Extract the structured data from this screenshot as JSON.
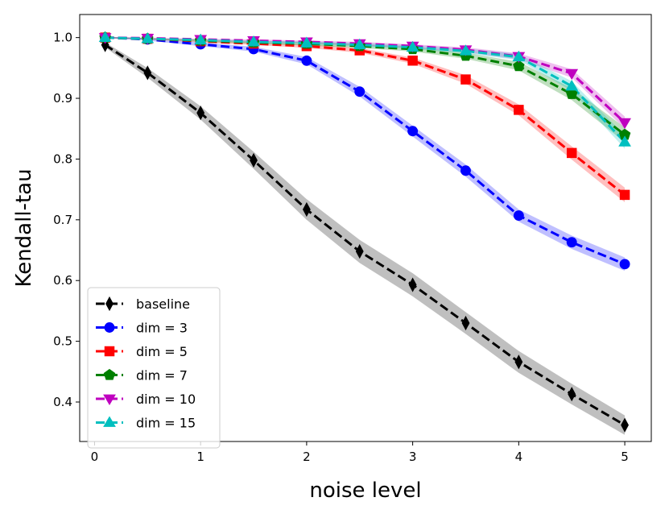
{
  "chart_data": {
    "type": "line",
    "xlabel": "noise level",
    "ylabel": "Kendall-tau",
    "xlim": [
      -0.14,
      5.25
    ],
    "ylim": [
      0.335,
      1.038
    ],
    "xticks": [
      0,
      1,
      2,
      3,
      4,
      5
    ],
    "xtick_labels": [
      "0",
      "1",
      "2",
      "3",
      "4",
      "5"
    ],
    "yticks": [
      0.4,
      0.5,
      0.6,
      0.7,
      0.8,
      0.9,
      1.0
    ],
    "ytick_labels": [
      "0.4",
      "0.5",
      "0.6",
      "0.7",
      "0.8",
      "0.9",
      "1.0"
    ],
    "legend_position": "lower-left",
    "x": [
      0.1,
      0.5,
      1.0,
      1.5,
      2.0,
      2.5,
      3.0,
      3.5,
      4.0,
      4.5,
      5.0
    ],
    "series": [
      {
        "name": "baseline",
        "color": "#000000",
        "marker": "thin-diamond",
        "values": [
          0.988,
          0.942,
          0.876,
          0.798,
          0.717,
          0.648,
          0.593,
          0.53,
          0.466,
          0.413,
          0.362
        ],
        "band": [
          0.004,
          0.008,
          0.011,
          0.014,
          0.017,
          0.019,
          0.019,
          0.018,
          0.018,
          0.017,
          0.016
        ]
      },
      {
        "name": "dim = 3",
        "color": "#0000ff",
        "marker": "circle",
        "values": [
          1.0,
          0.997,
          0.989,
          0.981,
          0.962,
          0.911,
          0.846,
          0.781,
          0.707,
          0.663,
          0.627
        ],
        "band": [
          0.001,
          0.002,
          0.003,
          0.004,
          0.006,
          0.008,
          0.009,
          0.01,
          0.01,
          0.011,
          0.011
        ]
      },
      {
        "name": "dim = 5",
        "color": "#ff0000",
        "marker": "square",
        "values": [
          1.0,
          0.998,
          0.994,
          0.99,
          0.986,
          0.979,
          0.962,
          0.931,
          0.881,
          0.81,
          0.741
        ],
        "band": [
          0.001,
          0.001,
          0.002,
          0.002,
          0.003,
          0.004,
          0.005,
          0.007,
          0.009,
          0.011,
          0.012
        ]
      },
      {
        "name": "dim = 7",
        "color": "#008000",
        "marker": "pentagon",
        "values": [
          1.0,
          0.998,
          0.995,
          0.992,
          0.99,
          0.986,
          0.981,
          0.97,
          0.953,
          0.907,
          0.84
        ],
        "band": [
          0.001,
          0.001,
          0.002,
          0.002,
          0.003,
          0.003,
          0.004,
          0.005,
          0.007,
          0.01,
          0.012
        ]
      },
      {
        "name": "dim = 10",
        "color": "#bf00bf",
        "marker": "triangle-down",
        "values": [
          1.0,
          0.999,
          0.997,
          0.995,
          0.993,
          0.99,
          0.986,
          0.98,
          0.969,
          0.941,
          0.86
        ],
        "band": [
          0.001,
          0.001,
          0.001,
          0.002,
          0.002,
          0.003,
          0.003,
          0.004,
          0.005,
          0.007,
          0.01
        ]
      },
      {
        "name": "dim = 15",
        "color": "#00bfbf",
        "marker": "triangle-up",
        "values": [
          1.0,
          0.998,
          0.996,
          0.993,
          0.991,
          0.988,
          0.984,
          0.978,
          0.968,
          0.92,
          0.828
        ],
        "band": [
          0.001,
          0.001,
          0.001,
          0.002,
          0.002,
          0.003,
          0.003,
          0.004,
          0.005,
          0.008,
          0.011
        ]
      }
    ]
  }
}
